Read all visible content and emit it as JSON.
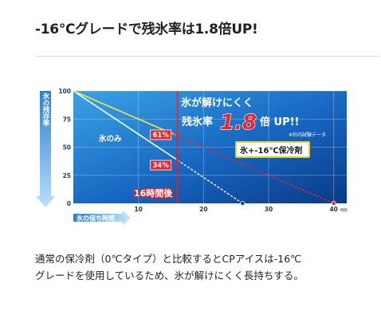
{
  "page": {
    "title": "-16℃グレードで残氷率は1.8倍UP!",
    "caption_line1": "通常の保冷剤（0℃タイプ）と比較するとCPアイスは-16℃",
    "caption_line2": "グレードを使用しているため、氷が解けにくく長持ちする。"
  },
  "chart_data": {
    "type": "line",
    "ylabel": "氷の残存率",
    "xlabel": "氷の保ち時間",
    "x_unit": "時間",
    "x_ticks": [
      10,
      20,
      30,
      40
    ],
    "y_ticks": [
      0,
      25,
      50,
      75,
      100
    ],
    "xlim": [
      0,
      42
    ],
    "ylim": [
      0,
      100
    ],
    "series": [
      {
        "name": "氷のみ",
        "color": "#ffffff",
        "points": [
          [
            0,
            100
          ],
          [
            26,
            0
          ]
        ]
      },
      {
        "name": "氷+-16℃保冷剤",
        "color": "#f5e63c",
        "points": [
          [
            0,
            100
          ],
          [
            40,
            0
          ]
        ]
      }
    ],
    "marker_line": {
      "x": 16,
      "label": "16時間後",
      "color": "#d8242c"
    },
    "callouts": [
      {
        "label": "61%",
        "series": "氷+-16℃保冷剤",
        "x": 16,
        "y": 61
      },
      {
        "label": "34%",
        "series": "氷のみ",
        "x": 16,
        "y": 34
      }
    ],
    "headline": {
      "line1": "氷が解けにくく",
      "line2_prefix": "残氷率",
      "line2_big": "1.8",
      "line2_suffix": "倍 UP!!",
      "note": "※社内試験データ"
    },
    "colors": {
      "bg_top": "#2a8ed6",
      "bg_bottom": "#0b3f8f",
      "accent_red": "#d8242c",
      "white": "#ffffff"
    }
  }
}
